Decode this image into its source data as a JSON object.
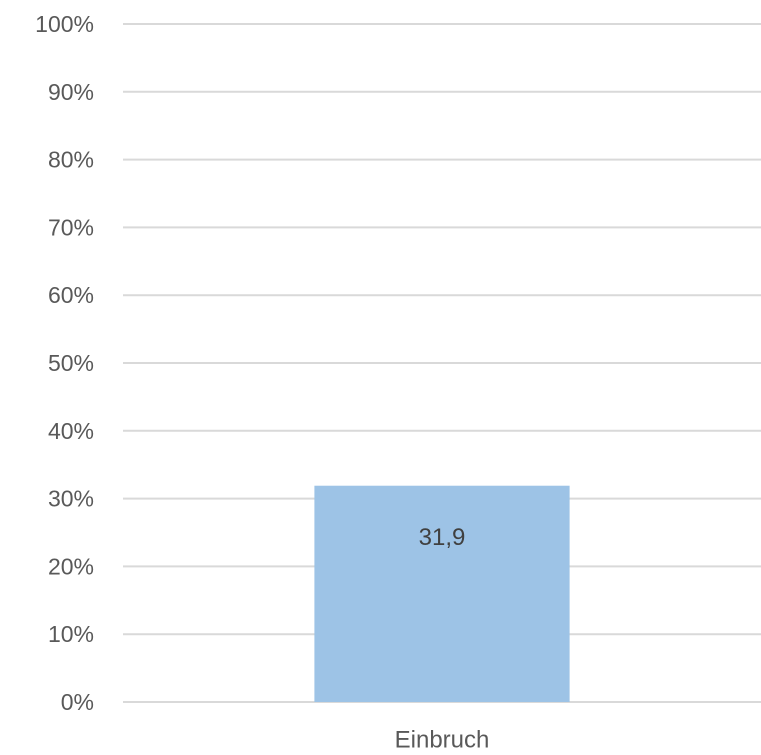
{
  "chart_data": {
    "type": "bar",
    "categories": [
      "Einbruch"
    ],
    "values": [
      31.9
    ],
    "data_labels": [
      "31,9"
    ],
    "y_tick_labels": [
      "0%",
      "10%",
      "20%",
      "30%",
      "40%",
      "50%",
      "60%",
      "70%",
      "80%",
      "90%",
      "100%"
    ],
    "ylim": [
      0,
      100
    ],
    "grid": true,
    "legend": "none",
    "title": "",
    "xlabel": "",
    "ylabel": "",
    "colors": {
      "bar": "#9dc3e6",
      "grid": "#d9d9d9",
      "text": "#595959",
      "data_label": "#404040"
    }
  }
}
